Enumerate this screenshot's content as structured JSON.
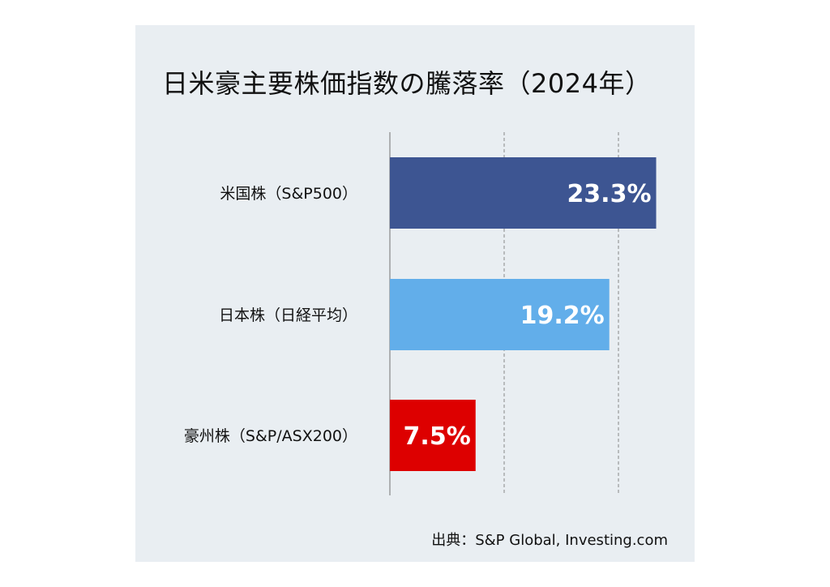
{
  "chart_data": {
    "type": "bar",
    "orientation": "horizontal",
    "title": "日米豪主要株価指数の騰落率（2024年）",
    "categories": [
      "米国株（S&P500）",
      "日本株（日経平均）",
      "豪州株（S&P/ASX200）"
    ],
    "values": [
      23.3,
      19.2,
      7.5
    ],
    "data_labels": [
      "23.3%",
      "19.2%",
      "7.5%"
    ],
    "colors": [
      "#3d5592",
      "#62aeea",
      "#dd0000"
    ],
    "xlim": [
      0,
      25
    ],
    "grid": true,
    "gridline_values": [
      10,
      20
    ],
    "source": "出典：S&P Global, Investing.com"
  }
}
